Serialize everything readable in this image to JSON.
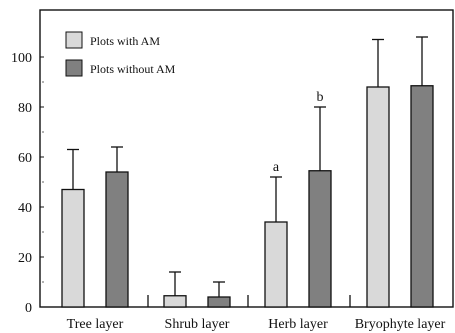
{
  "chart_data": {
    "type": "bar",
    "categories": [
      "Tree layer",
      "Shrub layer",
      "Herb layer",
      "Bryophyte layer"
    ],
    "series": [
      {
        "name": "Plots with AM",
        "color": "#d9d9d9",
        "values": [
          47,
          4.5,
          34,
          88
        ],
        "error_upper": [
          63,
          14,
          52,
          107
        ],
        "significance": [
          "",
          "",
          "a",
          ""
        ]
      },
      {
        "name": "Plots without AM",
        "color": "#808080",
        "values": [
          54,
          4,
          54.5,
          88.5
        ],
        "error_upper": [
          64,
          10,
          80,
          108
        ],
        "significance": [
          "",
          "",
          "b",
          ""
        ]
      }
    ],
    "y_ticks": [
      0,
      20,
      40,
      60,
      80,
      100
    ],
    "ylim": [
      0,
      120
    ],
    "grid": false,
    "legend_position": "top-left",
    "error_bars": "upper only"
  }
}
